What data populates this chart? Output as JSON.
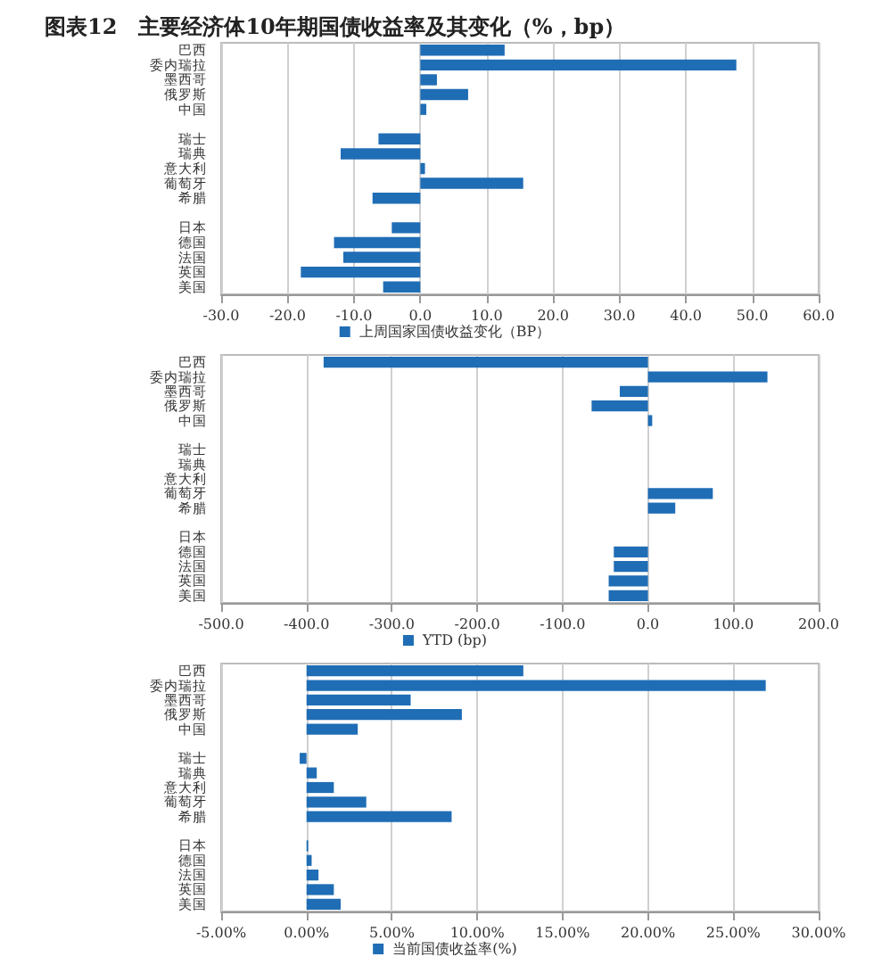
{
  "chart_data": [
    {
      "type": "bar",
      "title": "图表12　主要经济体10年期国债收益率及其变化（%，bp）",
      "orientation": "horizontal",
      "categories": [
        "巴西",
        "委内瑞拉",
        "墨西哥",
        "俄罗斯",
        "中国",
        null,
        "瑞士",
        "瑞典",
        "意大利",
        "葡萄牙",
        "希腊",
        null,
        "日本",
        "德国",
        "法国",
        "英国",
        "美国"
      ],
      "series": [
        {
          "name": "上周国家国债收益变化（BP）",
          "color": "#1f6db5",
          "values": [
            12.7,
            47.6,
            2.5,
            7.2,
            0.9,
            null,
            -6.3,
            -12,
            0.7,
            15.5,
            -7.2,
            null,
            -4.3,
            -13,
            -11.6,
            -18,
            -5.6
          ]
        }
      ],
      "xlim": [
        -30,
        60
      ],
      "xticks": [
        {
          "value": -30,
          "label": "-30.0"
        },
        {
          "value": -20,
          "label": "-20.0"
        },
        {
          "value": -10,
          "label": "-10.0"
        },
        {
          "value": 0,
          "label": "0.0"
        },
        {
          "value": 10,
          "label": "10.0"
        },
        {
          "value": 20,
          "label": "20.0"
        },
        {
          "value": 30,
          "label": "30.0"
        },
        {
          "value": 40,
          "label": "40.0"
        },
        {
          "value": 50,
          "label": "50.0"
        },
        {
          "value": 60,
          "label": "60.0"
        }
      ],
      "grid": "x",
      "legend": "bottom"
    },
    {
      "type": "bar",
      "orientation": "horizontal",
      "categories": [
        "巴西",
        "委内瑞拉",
        "墨西哥",
        "俄罗斯",
        "中国",
        null,
        "瑞士",
        "瑞典",
        "意大利",
        "葡萄牙",
        "希腊",
        null,
        "日本",
        "德国",
        "法国",
        "英国",
        "美国"
      ],
      "series": [
        {
          "name": "YTD (bp)",
          "color": "#1f6db5",
          "values": [
            -380,
            140,
            -33,
            -66,
            5,
            null,
            null,
            null,
            null,
            76,
            32,
            null,
            null,
            -40,
            -40,
            -46,
            -46
          ]
        }
      ],
      "xlim": [
        -500,
        200
      ],
      "xticks": [
        {
          "value": -500,
          "label": "-500.0"
        },
        {
          "value": -400,
          "label": "-400.0"
        },
        {
          "value": -300,
          "label": "-300.0"
        },
        {
          "value": -200,
          "label": "-200.0"
        },
        {
          "value": -100,
          "label": "-100.0"
        },
        {
          "value": 0,
          "label": "0.0"
        },
        {
          "value": 100,
          "label": "100.0"
        },
        {
          "value": 200,
          "label": "200.0"
        }
      ],
      "grid": "x",
      "legend": "bottom"
    },
    {
      "type": "bar",
      "orientation": "horizontal",
      "categories": [
        "巴西",
        "委内瑞拉",
        "墨西哥",
        "俄罗斯",
        "中国",
        null,
        "瑞士",
        "瑞典",
        "意大利",
        "葡萄牙",
        "希腊",
        null,
        "日本",
        "德国",
        "法国",
        "英国",
        "美国"
      ],
      "series": [
        {
          "name": "当前国债收益率(%)",
          "color": "#1f6db5",
          "values": [
            12.7,
            26.9,
            6.1,
            9.1,
            3,
            null,
            -0.4,
            0.6,
            1.6,
            3.5,
            8.5,
            null,
            0.1,
            0.3,
            0.7,
            1.6,
            2
          ]
        }
      ],
      "xlim": [
        -5,
        30
      ],
      "xticks": [
        {
          "value": -5,
          "label": "-5.00%"
        },
        {
          "value": 0,
          "label": "0.00%"
        },
        {
          "value": 5,
          "label": "5.00%"
        },
        {
          "value": 10,
          "label": "10.00%"
        },
        {
          "value": 15,
          "label": "15.00%"
        },
        {
          "value": 20,
          "label": "20.00%"
        },
        {
          "value": 25,
          "label": "25.00%"
        },
        {
          "value": 30,
          "label": "30.00%"
        }
      ],
      "grid": "x",
      "legend": "bottom"
    }
  ]
}
